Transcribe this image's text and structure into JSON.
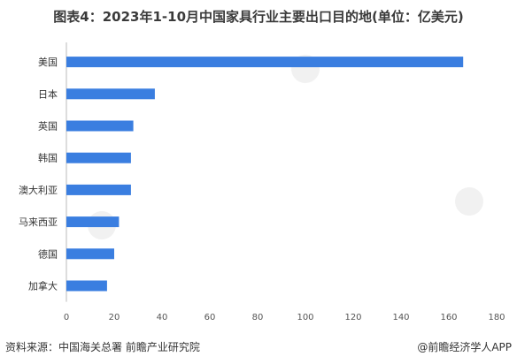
{
  "title": "图表4：2023年1-10月中国家具行业主要出口目的地(单位：亿美元)",
  "footer": {
    "source": "资料来源：中国海关总署 前瞻产业研究院",
    "brand": "@前瞻经济学人APP"
  },
  "colors": {
    "bar": "#3a7ee0",
    "axis_text": "#555555"
  },
  "chart_data": {
    "type": "bar",
    "orientation": "horizontal",
    "categories": [
      "美国",
      "日本",
      "英国",
      "韩国",
      "澳大利亚",
      "马来西亚",
      "德国",
      "加拿大"
    ],
    "values": [
      166,
      37,
      28,
      27,
      27,
      22,
      20,
      17
    ],
    "xlim": [
      0,
      180
    ],
    "xticks": [
      0,
      20,
      40,
      60,
      80,
      100,
      120,
      140,
      160,
      180
    ],
    "grid": false
  }
}
